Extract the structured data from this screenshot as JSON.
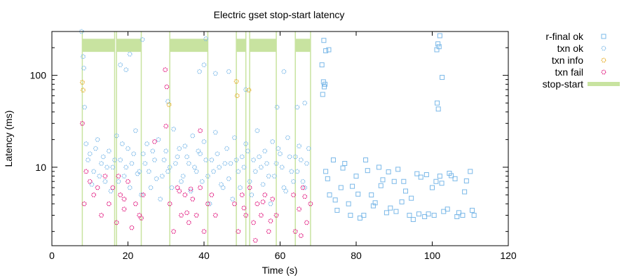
{
  "chart_data": {
    "type": "scatter",
    "title": "Electric gset  stop-start latency",
    "xlabel": "Time (s)",
    "ylabel": "Latency (ms)",
    "xlim": [
      0,
      120
    ],
    "ylim": [
      1.4,
      300
    ],
    "yscale": "log",
    "x_ticks": [
      0,
      20,
      40,
      60,
      80,
      100,
      120
    ],
    "y_ticks": [
      10,
      100
    ],
    "legend_position": "right",
    "series": [
      {
        "name": "r-final ok",
        "color": "#7ab8e8",
        "marker": "square",
        "points": [
          [
            71.5,
            240
          ],
          [
            72.0,
            185
          ],
          [
            72.8,
            190
          ],
          [
            71.0,
            130
          ],
          [
            71.4,
            85
          ],
          [
            71.6,
            75
          ],
          [
            71.2,
            62
          ],
          [
            71.8,
            80
          ],
          [
            101.2,
            190
          ],
          [
            101.5,
            220
          ],
          [
            102.0,
            270
          ],
          [
            101.8,
            205
          ],
          [
            102.6,
            95
          ],
          [
            101.3,
            50
          ],
          [
            101.6,
            43
          ],
          [
            72,
            9
          ],
          [
            74,
            12
          ],
          [
            76,
            6
          ],
          [
            78,
            4
          ],
          [
            80,
            8
          ],
          [
            82,
            3
          ],
          [
            84,
            5
          ],
          [
            86,
            10
          ],
          [
            88,
            3.2
          ],
          [
            90,
            7
          ],
          [
            92,
            4.2
          ],
          [
            94,
            3
          ],
          [
            96,
            8.5
          ],
          [
            98,
            2.9
          ],
          [
            100,
            6
          ],
          [
            102,
            8
          ],
          [
            104,
            3.5
          ],
          [
            106,
            7.5
          ],
          [
            108,
            3
          ],
          [
            110,
            9
          ],
          [
            73,
            5
          ],
          [
            75,
            3.4
          ],
          [
            77,
            11
          ],
          [
            79,
            6.2
          ],
          [
            81,
            2.8
          ],
          [
            83,
            9.2
          ],
          [
            85,
            4.1
          ],
          [
            87,
            7.3
          ],
          [
            89,
            3.6
          ],
          [
            91,
            9.5
          ],
          [
            93,
            5.5
          ],
          [
            95,
            2.7
          ],
          [
            97,
            7.8
          ],
          [
            99,
            3.1
          ],
          [
            101,
            7
          ],
          [
            103,
            3.3
          ],
          [
            105,
            8.1
          ],
          [
            107,
            3.2
          ],
          [
            109,
            7.1
          ],
          [
            111,
            3.0
          ],
          [
            72.5,
            7.5
          ],
          [
            74.5,
            4.4
          ],
          [
            76.5,
            9.8
          ],
          [
            78.5,
            3.0
          ],
          [
            80.5,
            5.1
          ],
          [
            82.5,
            12
          ],
          [
            84.5,
            3.8
          ],
          [
            86.5,
            6.3
          ],
          [
            88.5,
            8.9
          ],
          [
            90.5,
            3.3
          ],
          [
            92.5,
            7.0
          ],
          [
            94.5,
            4.6
          ],
          [
            96.5,
            3.1
          ],
          [
            98.5,
            8.3
          ],
          [
            100.5,
            3.0
          ],
          [
            102.5,
            6.7
          ],
          [
            104.5,
            8.6
          ],
          [
            106.5,
            2.9
          ],
          [
            108.5,
            5.4
          ],
          [
            110.5,
            3.4
          ]
        ]
      },
      {
        "name": "txn ok",
        "color": "#7ab8e8",
        "marker": "circle",
        "points": [
          [
            7.8,
            300
          ],
          [
            8.2,
            160
          ],
          [
            8.4,
            120
          ],
          [
            8.6,
            45
          ],
          [
            20.5,
            170
          ],
          [
            23.8,
            245
          ],
          [
            19.5,
            115
          ],
          [
            30.5,
            52
          ],
          [
            40.5,
            250
          ],
          [
            40.0,
            130
          ],
          [
            38.8,
            110
          ],
          [
            43.0,
            105
          ],
          [
            46.5,
            110
          ],
          [
            51.0,
            70
          ],
          [
            59.2,
            45
          ],
          [
            61.0,
            110
          ],
          [
            64.5,
            45
          ],
          [
            66.5,
            50
          ],
          [
            18.0,
            130
          ],
          [
            9,
            18
          ],
          [
            10,
            14
          ],
          [
            11,
            9
          ],
          [
            12,
            20
          ],
          [
            13,
            11
          ],
          [
            14,
            7
          ],
          [
            15,
            15
          ],
          [
            16,
            10
          ],
          [
            17,
            22
          ],
          [
            18,
            12
          ],
          [
            19,
            8
          ],
          [
            20,
            16
          ],
          [
            21,
            11
          ],
          [
            22,
            25
          ],
          [
            23,
            9
          ],
          [
            24,
            14
          ],
          [
            25,
            18
          ],
          [
            26,
            6
          ],
          [
            27,
            12
          ],
          [
            28,
            20
          ],
          [
            29,
            8
          ],
          [
            30,
            15
          ],
          [
            31,
            10
          ],
          [
            32,
            26
          ],
          [
            33,
            13
          ],
          [
            34,
            7
          ],
          [
            35,
            17
          ],
          [
            36,
            11
          ],
          [
            37,
            22
          ],
          [
            38,
            9
          ],
          [
            39,
            14
          ],
          [
            40,
            19
          ],
          [
            41,
            8
          ],
          [
            42,
            12
          ],
          [
            43,
            24
          ],
          [
            44,
            10
          ],
          [
            45,
            6
          ],
          [
            46,
            16
          ],
          [
            47,
            11
          ],
          [
            48,
            21
          ],
          [
            49,
            9
          ],
          [
            50,
            13
          ],
          [
            51,
            18
          ],
          [
            52,
            7
          ],
          [
            53,
            12
          ],
          [
            54,
            25
          ],
          [
            55,
            10
          ],
          [
            56,
            15
          ],
          [
            57,
            8
          ],
          [
            58,
            19
          ],
          [
            59,
            11
          ],
          [
            60,
            14
          ],
          [
            61,
            6
          ],
          [
            62,
            21
          ],
          [
            63,
            9
          ],
          [
            64,
            13
          ],
          [
            65,
            17
          ],
          [
            66,
            7
          ],
          [
            67,
            11
          ],
          [
            9.5,
            12
          ],
          [
            10.5,
            6.5
          ],
          [
            11.5,
            16
          ],
          [
            12.5,
            8
          ],
          [
            13.5,
            13
          ],
          [
            14.5,
            10
          ],
          [
            15.5,
            5.5
          ],
          [
            16.5,
            12
          ],
          [
            17.5,
            7
          ],
          [
            18.5,
            18
          ],
          [
            19.5,
            10
          ],
          [
            20.5,
            6
          ],
          [
            21.5,
            14
          ],
          [
            22.5,
            8.5
          ],
          [
            23.5,
            5
          ],
          [
            24.5,
            11
          ],
          [
            25.5,
            9
          ],
          [
            26.5,
            15
          ],
          [
            27.5,
            7.5
          ],
          [
            28.5,
            4.5
          ],
          [
            29.5,
            12
          ],
          [
            30.5,
            9
          ],
          [
            31.5,
            6
          ],
          [
            32.5,
            11
          ],
          [
            33.5,
            16
          ],
          [
            34.5,
            8
          ],
          [
            35.5,
            13
          ],
          [
            36.5,
            5.5
          ],
          [
            37.5,
            10
          ],
          [
            38.5,
            15
          ],
          [
            39.5,
            7
          ],
          [
            40.5,
            12
          ],
          [
            41.5,
            4
          ],
          [
            42.5,
            9
          ],
          [
            43.5,
            14
          ],
          [
            44.5,
            6.5
          ],
          [
            45.5,
            11
          ],
          [
            46.5,
            7.5
          ],
          [
            47.5,
            4.5
          ],
          [
            48.5,
            12
          ],
          [
            49.5,
            6
          ],
          [
            50.5,
            10
          ],
          [
            51.5,
            15
          ],
          [
            52.5,
            5
          ],
          [
            53.5,
            9
          ],
          [
            54.5,
            13
          ],
          [
            55.5,
            6.5
          ],
          [
            56.5,
            11
          ],
          [
            57.5,
            4
          ],
          [
            58.5,
            8
          ],
          [
            59.5,
            16
          ],
          [
            60.5,
            10
          ],
          [
            61.5,
            5.5
          ],
          [
            62.5,
            13
          ],
          [
            63.5,
            7
          ],
          [
            64.5,
            9
          ],
          [
            65.5,
            12
          ],
          [
            66.5,
            6
          ],
          [
            67.5,
            16
          ]
        ]
      },
      {
        "name": "txn info",
        "color": "#e6a817",
        "marker": "circle",
        "points": [
          [
            8.0,
            84
          ],
          [
            8.2,
            69
          ],
          [
            30.8,
            48
          ],
          [
            48.5,
            86
          ],
          [
            48.7,
            60
          ],
          [
            51.8,
            69
          ]
        ]
      },
      {
        "name": "txn fail",
        "color": "#e0107a",
        "marker": "circle",
        "points": [
          [
            8,
            30
          ],
          [
            8.5,
            4
          ],
          [
            9,
            9
          ],
          [
            10,
            7
          ],
          [
            11,
            5
          ],
          [
            12,
            6
          ],
          [
            13,
            3
          ],
          [
            14,
            8
          ],
          [
            15,
            4
          ],
          [
            16,
            6
          ],
          [
            17,
            2.5
          ],
          [
            18,
            5
          ],
          [
            19,
            3.5
          ],
          [
            20,
            7
          ],
          [
            21,
            2.2
          ],
          [
            22,
            4
          ],
          [
            23,
            3
          ],
          [
            24,
            5
          ],
          [
            29.8,
            115
          ],
          [
            30.2,
            75
          ],
          [
            30,
            28
          ],
          [
            31,
            4
          ],
          [
            32,
            2
          ],
          [
            33,
            6
          ],
          [
            34,
            3
          ],
          [
            35,
            5
          ],
          [
            36,
            2.5
          ],
          [
            37,
            4.5
          ],
          [
            38,
            3
          ],
          [
            39,
            6
          ],
          [
            40,
            2
          ],
          [
            41,
            4
          ],
          [
            42,
            5
          ],
          [
            43,
            3
          ],
          [
            39.0,
            25
          ],
          [
            27.0,
            19
          ],
          [
            48,
            4
          ],
          [
            49,
            2
          ],
          [
            50,
            5
          ],
          [
            51,
            3
          ],
          [
            52,
            6
          ],
          [
            53,
            2.5
          ],
          [
            54,
            4
          ],
          [
            55,
            3
          ],
          [
            56,
            5
          ],
          [
            57,
            2
          ],
          [
            58,
            4.5
          ],
          [
            59,
            3
          ],
          [
            63.5,
            5
          ],
          [
            64,
            2
          ],
          [
            65,
            3.5
          ],
          [
            66,
            6
          ],
          [
            67,
            2.5
          ],
          [
            68,
            4
          ],
          [
            17.5,
            8
          ],
          [
            19,
            4.5
          ],
          [
            23.5,
            2.8
          ],
          [
            33.5,
            5.5
          ],
          [
            35.5,
            3.2
          ],
          [
            36.5,
            5.8
          ],
          [
            50.5,
            3.6
          ],
          [
            53.5,
            1.6
          ],
          [
            55.5,
            4.2
          ],
          [
            57.5,
            2.6
          ],
          [
            65.5,
            1.8
          ],
          [
            66.5,
            4.8
          ]
        ]
      },
      {
        "name": "stop-start",
        "color": "#c8e3a0",
        "marker": "band",
        "intervals": [
          [
            8,
            16.5
          ],
          [
            17,
            23.5
          ],
          [
            31,
            41
          ],
          [
            48.5,
            51
          ],
          [
            52,
            59
          ],
          [
            64,
            68
          ]
        ]
      }
    ]
  }
}
